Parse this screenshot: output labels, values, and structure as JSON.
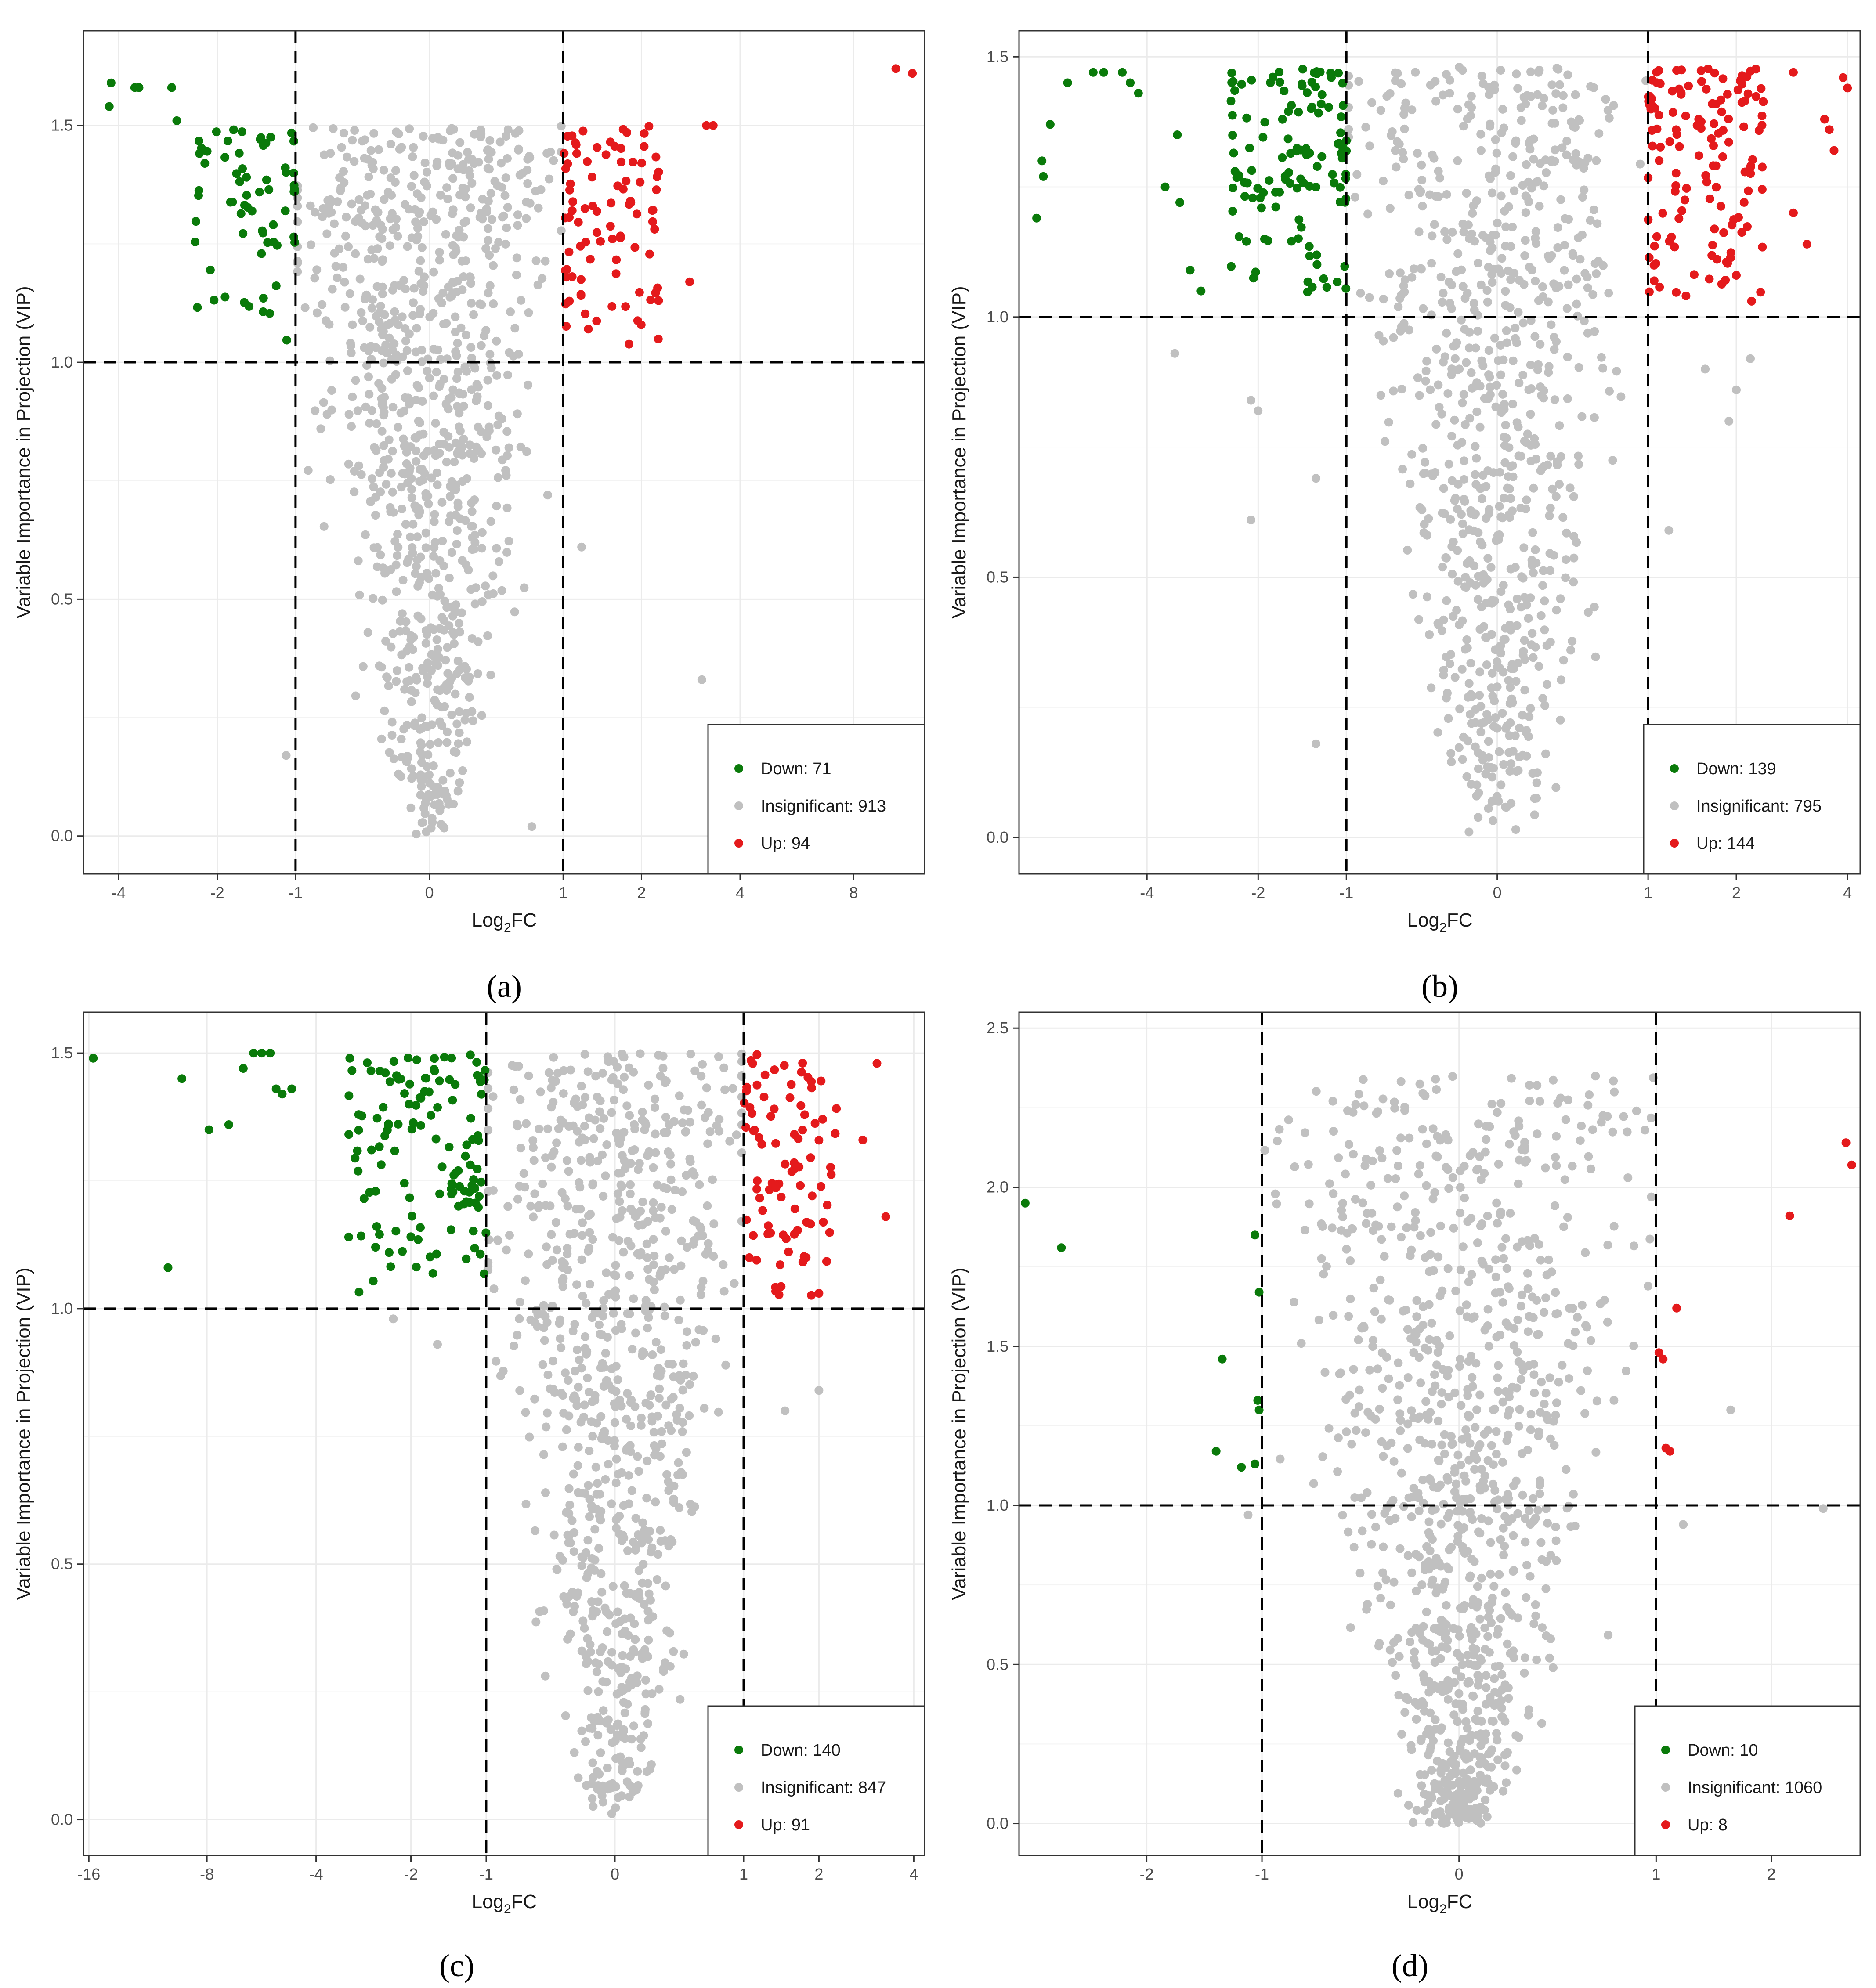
{
  "figure": {
    "panels": [
      "(a)",
      "(b)",
      "(c)",
      "(d)"
    ]
  },
  "colors": {
    "down": "#0a7a0a",
    "insignificant": "#c0c0c0",
    "up": "#e41a1c",
    "grid": "#ebebeb",
    "threshold": "#000000"
  },
  "chart_data": [
    {
      "id": "a",
      "type": "scatter",
      "caption": "(a)",
      "xlabel": "Log2FC",
      "ylabel": "Variable Importance in Projection (VIP)",
      "xlim": [
        -5,
        12
      ],
      "ylim": [
        -0.08,
        1.7
      ],
      "xticks": [
        -4,
        -2,
        -1,
        0,
        1,
        2,
        4,
        8
      ],
      "yticks": [
        0.0,
        0.5,
        1.0,
        1.5
      ],
      "ytick_labels": [
        "0.0",
        "0.5",
        "1.0",
        "1.5"
      ],
      "thresholds": {
        "x": [
          -1,
          1
        ],
        "y": 1.0
      },
      "legend": [
        {
          "key": "down",
          "label": "Down: 71",
          "count": 71
        },
        {
          "key": "insignificant",
          "label": "Insignificant: 913",
          "count": 913
        },
        {
          "key": "up",
          "label": "Up: 94",
          "count": 94
        }
      ],
      "extra_up": [
        [
          10.2,
          1.62
        ],
        [
          11.2,
          1.61
        ],
        [
          3.2,
          1.5
        ],
        [
          3.35,
          1.5
        ],
        [
          2.85,
          1.17
        ]
      ],
      "extra_ins": [
        [
          3.1,
          0.33
        ],
        [
          0.7,
          0.02
        ],
        [
          -1.1,
          0.17
        ],
        [
          1.2,
          0.61
        ]
      ],
      "extra_down": [
        [
          -4.2,
          1.59
        ],
        [
          -4.25,
          1.54
        ],
        [
          -3.5,
          1.58
        ],
        [
          -3.6,
          1.58
        ],
        [
          -2.8,
          1.58
        ],
        [
          -2.7,
          1.51
        ],
        [
          -2.2,
          1.42
        ]
      ]
    },
    {
      "id": "b",
      "type": "scatter",
      "caption": "(b)",
      "xlabel": "Log2FC",
      "ylabel": "Variable Importance in Projection (VIP)",
      "xlim": [
        -8,
        4.3
      ],
      "ylim": [
        -0.07,
        1.55
      ],
      "xticks": [
        -4,
        -2,
        -1,
        0,
        1,
        2,
        4
      ],
      "yticks": [
        0.0,
        0.5,
        1.0,
        1.5
      ],
      "ytick_labels": [
        "0.0",
        "0.5",
        "1.0",
        "1.5"
      ],
      "thresholds": {
        "x": [
          -1,
          1
        ],
        "y": 1.0
      },
      "legend": [
        {
          "key": "down",
          "label": "Down: 139",
          "count": 139
        },
        {
          "key": "insignificant",
          "label": "Insignificant: 795",
          "count": 795
        },
        {
          "key": "up",
          "label": "Up: 144",
          "count": 144
        }
      ],
      "extra_up": [
        [
          4.0,
          1.44
        ],
        [
          3.9,
          1.46
        ],
        [
          3.5,
          1.38
        ],
        [
          3.6,
          1.36
        ],
        [
          3.7,
          1.32
        ],
        [
          2.9,
          1.2
        ],
        [
          3.15,
          1.14
        ],
        [
          2.0,
          1.08
        ],
        [
          2.9,
          1.47
        ]
      ],
      "extra_ins": [
        [
          -3.4,
          0.93
        ],
        [
          -2.1,
          0.84
        ],
        [
          -2.0,
          0.82
        ],
        [
          -1.3,
          0.69
        ],
        [
          -2.1,
          0.61
        ],
        [
          -1.3,
          0.18
        ],
        [
          1.9,
          0.8
        ],
        [
          2.2,
          0.92
        ],
        [
          1.6,
          0.9
        ],
        [
          2.0,
          0.86
        ],
        [
          1.2,
          0.59
        ]
      ],
      "extra_down": [
        [
          -7.3,
          1.19
        ],
        [
          -7.1,
          1.3
        ],
        [
          -7.05,
          1.27
        ],
        [
          -6.8,
          1.37
        ],
        [
          -6.2,
          1.45
        ],
        [
          -5.4,
          1.47
        ],
        [
          -5.1,
          1.47
        ],
        [
          -4.6,
          1.47
        ],
        [
          -4.4,
          1.45
        ],
        [
          -4.2,
          1.43
        ],
        [
          -3.6,
          1.25
        ],
        [
          -3.35,
          1.35
        ],
        [
          -3.3,
          1.22
        ],
        [
          -3.1,
          1.09
        ],
        [
          -2.9,
          1.05
        ]
      ]
    },
    {
      "id": "c",
      "type": "scatter",
      "caption": "(c)",
      "xlabel": "Log2FC",
      "ylabel": "Variable Importance in Projection (VIP)",
      "xlim": [
        -16.5,
        4.3
      ],
      "ylim": [
        -0.07,
        1.58
      ],
      "xticks": [
        -16,
        -8,
        -4,
        -2,
        -1,
        0,
        1,
        2,
        4
      ],
      "yticks": [
        0.0,
        0.5,
        1.0,
        1.5
      ],
      "ytick_labels": [
        "0.0",
        "0.5",
        "1.0",
        "1.5"
      ],
      "thresholds": {
        "x": [
          -1,
          1
        ],
        "y": 1.0
      },
      "legend": [
        {
          "key": "down",
          "label": "Down: 140",
          "count": 140
        },
        {
          "key": "insignificant",
          "label": "Insignificant: 847",
          "count": 847
        },
        {
          "key": "up",
          "label": "Up: 91",
          "count": 91
        }
      ],
      "extra_up": [
        [
          3.1,
          1.48
        ],
        [
          2.8,
          1.33
        ],
        [
          3.3,
          1.18
        ],
        [
          2.0,
          1.03
        ],
        [
          1.8,
          1.1
        ]
      ],
      "extra_ins": [
        [
          -2.3,
          0.98
        ],
        [
          -1.6,
          0.93
        ],
        [
          2.0,
          0.84
        ],
        [
          1.5,
          0.8
        ]
      ],
      "extra_down": [
        [
          -15.6,
          1.49
        ],
        [
          -10.1,
          1.08
        ],
        [
          -9.3,
          1.45
        ],
        [
          -7.9,
          1.35
        ],
        [
          -7.0,
          1.36
        ],
        [
          -6.4,
          1.47
        ],
        [
          -6.0,
          1.5
        ],
        [
          -5.7,
          1.5
        ],
        [
          -5.4,
          1.5
        ],
        [
          -5.2,
          1.43
        ],
        [
          -5.0,
          1.42
        ],
        [
          -4.7,
          1.43
        ]
      ]
    },
    {
      "id": "d",
      "type": "scatter",
      "caption": "(d)",
      "xlabel": "Log2FC",
      "ylabel": "Variable Importance in Projection (VIP)",
      "xlim": [
        -3.7,
        3.1
      ],
      "ylim": [
        -0.1,
        2.55
      ],
      "xticks": [
        -2,
        -1,
        0,
        1,
        2
      ],
      "yticks": [
        0.0,
        0.5,
        1.0,
        1.5,
        2.0,
        2.5
      ],
      "ytick_labels": [
        "0.0",
        "0.5",
        "1.0",
        "1.5",
        "2.0",
        "2.5"
      ],
      "thresholds": {
        "x": [
          -1,
          1
        ],
        "y": 1.0
      },
      "legend": [
        {
          "key": "down",
          "label": "Down: 10",
          "count": 10
        },
        {
          "key": "insignificant",
          "label": "Insignificant: 1060",
          "count": 1060
        },
        {
          "key": "up",
          "label": "Up: 8",
          "count": 8
        }
      ],
      "points_down": [
        [
          -3.6,
          1.95
        ],
        [
          -3.05,
          1.81
        ],
        [
          -1.05,
          1.85
        ],
        [
          -1.02,
          1.67
        ],
        [
          -1.3,
          1.46
        ],
        [
          -1.03,
          1.33
        ],
        [
          -1.02,
          1.3
        ],
        [
          -1.35,
          1.17
        ],
        [
          -1.15,
          1.12
        ],
        [
          -1.05,
          1.13
        ]
      ],
      "points_up": [
        [
          2.9,
          2.14
        ],
        [
          2.98,
          2.07
        ],
        [
          2.2,
          1.91
        ],
        [
          1.15,
          1.62
        ],
        [
          1.02,
          1.48
        ],
        [
          1.05,
          1.46
        ],
        [
          1.07,
          1.18
        ],
        [
          1.1,
          1.17
        ]
      ],
      "extra_ins": [
        [
          2.6,
          0.99
        ],
        [
          1.2,
          0.94
        ],
        [
          -1.1,
          0.97
        ],
        [
          1.6,
          1.3
        ]
      ]
    }
  ]
}
